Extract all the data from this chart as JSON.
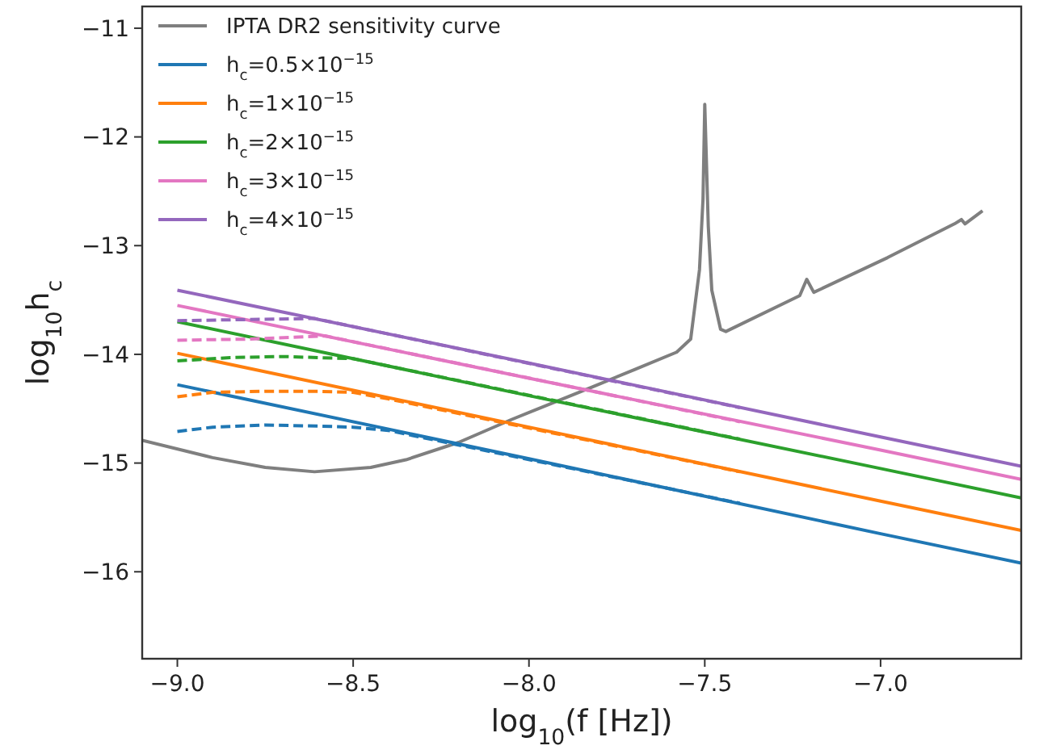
{
  "chart_data": {
    "type": "line",
    "xlabel": "log$_{10}$(f [Hz])",
    "ylabel": "log$_{10}$h$_{c}$",
    "xlim": [
      -9.1,
      -6.6
    ],
    "ylim": [
      -16.8,
      -10.8
    ],
    "xticks": [
      {
        "value": -9,
        "label": "−9.0"
      },
      {
        "value": -8.5,
        "label": "−8.5"
      },
      {
        "value": -8,
        "label": "−8.0"
      },
      {
        "value": -7.5,
        "label": "−7.5"
      },
      {
        "value": -7,
        "label": "−7.0"
      }
    ],
    "yticks": [
      {
        "value": -16,
        "label": "−16"
      },
      {
        "value": -15,
        "label": "−15"
      },
      {
        "value": -14,
        "label": "−14"
      },
      {
        "value": -13,
        "label": "−13"
      },
      {
        "value": -12,
        "label": "−12"
      },
      {
        "value": -11,
        "label": "−11"
      }
    ],
    "grid": false,
    "legend": "top left",
    "marker": "none",
    "series": [
      {
        "name": "IPTA DR2 sensitivity curve",
        "color": "#7f7f7f",
        "line_style": "solid",
        "x": [
          -9.1,
          -8.9,
          -8.75,
          -8.61,
          -8.45,
          -8.35,
          -8.2,
          -8.05,
          -7.82,
          -7.7,
          -7.58,
          -7.54,
          -7.515,
          -7.505,
          -7.5,
          -7.49,
          -7.48,
          -7.455,
          -7.44,
          -7.23,
          -7.21,
          -7.19,
          -6.98,
          -6.79,
          -6.77,
          -6.76,
          -6.71
        ],
        "values": [
          -14.79,
          -14.95,
          -15.04,
          -15.08,
          -15.04,
          -14.97,
          -14.81,
          -14.6,
          -14.3,
          -14.14,
          -13.98,
          -13.86,
          -13.22,
          -12.57,
          -11.7,
          -12.82,
          -13.41,
          -13.77,
          -13.79,
          -13.46,
          -13.31,
          -13.43,
          -13.11,
          -12.8,
          -12.76,
          -12.8,
          -12.68
        ]
      },
      {
        "name": "h$_{c}$=0.5×10$^{−15}$",
        "color": "#1f77b4",
        "line_style": "solid",
        "x": [
          -9,
          -8,
          -7,
          -6.6
        ],
        "values": [
          -14.28,
          -14.96,
          -15.65,
          -15.92
        ]
      },
      {
        "name": "h$_{c}$=1×10$^{−15}$",
        "color": "#ff7f0e",
        "line_style": "solid",
        "x": [
          -9,
          -8,
          -7,
          -6.6
        ],
        "values": [
          -13.99,
          -14.67,
          -15.35,
          -15.62
        ]
      },
      {
        "name": "h$_{c}$=2×10$^{−15}$",
        "color": "#2ca02c",
        "line_style": "solid",
        "x": [
          -9,
          -8,
          -7,
          -6.6
        ],
        "values": [
          -13.7,
          -14.38,
          -15.05,
          -15.32
        ]
      },
      {
        "name": "h$_{c}$=3×10$^{−15}$",
        "color": "#e377c2",
        "line_style": "solid",
        "x": [
          -9,
          -8,
          -7,
          -6.6
        ],
        "values": [
          -13.55,
          -14.22,
          -14.88,
          -15.15
        ]
      },
      {
        "name": "h$_{c}$=4×10$^{−15}$",
        "color": "#9467bd",
        "line_style": "solid",
        "x": [
          -9,
          -8,
          -7,
          -6.6
        ],
        "values": [
          -13.41,
          -14.08,
          -14.76,
          -15.03
        ]
      },
      {
        "color": "#1f77b4",
        "line_style": "dashed",
        "x": [
          -9,
          -8.9,
          -8.75,
          -8.6,
          -8.5,
          -8.4,
          -7.4
        ],
        "values": [
          -14.71,
          -14.67,
          -14.65,
          -14.66,
          -14.67,
          -14.7,
          -15.37
        ]
      },
      {
        "color": "#ff7f0e",
        "line_style": "dashed",
        "x": [
          -9,
          -8.9,
          -8.75,
          -8.6,
          -8.5,
          -8.4,
          -7.4
        ],
        "values": [
          -14.39,
          -14.35,
          -14.34,
          -14.34,
          -14.35,
          -14.41,
          -15.08
        ]
      },
      {
        "color": "#2ca02c",
        "line_style": "dashed",
        "x": [
          -9,
          -8.85,
          -8.7,
          -8.6,
          -8.5,
          -7.4
        ],
        "values": [
          -14.06,
          -14.03,
          -14.02,
          -14.03,
          -14.04,
          -14.78
        ]
      },
      {
        "color": "#e377c2",
        "line_style": "dashed",
        "x": [
          -9,
          -8.8,
          -8.58,
          -7.4
        ],
        "values": [
          -13.87,
          -13.86,
          -13.83,
          -14.62
        ]
      },
      {
        "color": "#9467bd",
        "line_style": "dashed",
        "x": [
          -9,
          -8.8,
          -8.61,
          -7.4
        ],
        "values": [
          -13.69,
          -13.68,
          -13.67,
          -14.49
        ]
      }
    ]
  }
}
